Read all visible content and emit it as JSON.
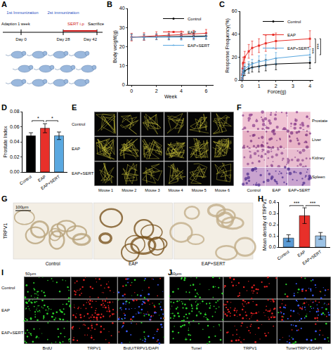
{
  "chart_data": [
    {
      "label": "B",
      "type": "line",
      "xlabel": "Week",
      "ylabel": "Body weight(g)",
      "x": [
        0,
        1,
        2,
        3,
        4,
        5,
        6
      ],
      "xlim": [
        -0.3,
        6.6
      ],
      "xticks": [
        0,
        2,
        4,
        6
      ],
      "ylim": [
        0,
        40
      ],
      "yticks": [
        0,
        10,
        20,
        30,
        40
      ],
      "grid": false,
      "legend": "top right",
      "series": [
        {
          "name": "Control",
          "color": "#000000",
          "marker": "circle",
          "values": [
            25,
            25,
            25.2,
            25.3,
            25.4,
            25.5,
            25.6
          ],
          "errors": [
            1.5,
            1.5,
            1.5,
            1.5,
            1.5,
            1.5,
            1.5
          ]
        },
        {
          "name": "EAP",
          "color": "#e8302a",
          "marker": "square",
          "values": [
            25,
            25.3,
            25.8,
            26,
            26.2,
            26.5,
            27
          ],
          "errors": [
            2,
            2,
            2,
            2,
            2,
            2,
            2
          ]
        },
        {
          "name": "EAP+SERT",
          "color": "#5aa8e0",
          "marker": "triangle-up",
          "values": [
            25,
            25,
            25.1,
            25,
            24.9,
            25,
            25.2
          ],
          "errors": [
            1.5,
            1.5,
            1.5,
            1.5,
            1.5,
            1.5,
            1.5
          ]
        }
      ]
    },
    {
      "label": "C",
      "type": "line",
      "xlabel": "Force(g)",
      "ylabel": "Response Frequency(%)",
      "x": [
        0.008,
        0.02,
        0.04,
        0.07,
        0.16,
        0.4,
        0.6,
        1,
        1.4,
        2,
        4
      ],
      "xlim": [
        -0.1,
        4.2
      ],
      "xticks": [
        0,
        1,
        2,
        3,
        4
      ],
      "ylim": [
        0,
        60
      ],
      "yticks": [
        0,
        20,
        40,
        60
      ],
      "grid": false,
      "legend": "top right",
      "series": [
        {
          "name": "Control",
          "color": "#000000",
          "marker": "circle",
          "values": [
            0,
            2,
            4,
            6,
            8,
            10,
            11,
            12,
            13,
            14,
            15
          ],
          "errors": [
            0,
            2,
            3,
            3,
            4,
            4,
            4,
            5,
            5,
            5,
            5
          ]
        },
        {
          "name": "EAP",
          "color": "#e8302a",
          "marker": "square",
          "values": [
            0,
            5,
            10,
            15,
            20,
            25,
            28,
            30,
            32,
            34,
            36
          ],
          "errors": [
            0,
            3,
            4,
            5,
            5,
            6,
            6,
            6,
            7,
            7,
            7
          ]
        },
        {
          "name": "EAP+SERT",
          "color": "#5aa8e0",
          "marker": "triangle-up",
          "values": [
            0,
            3,
            6,
            8,
            10,
            12,
            14,
            16,
            17,
            19,
            22
          ],
          "errors": [
            0,
            2,
            3,
            3,
            4,
            4,
            4,
            5,
            5,
            5,
            5
          ]
        }
      ],
      "significance": [
        {
          "pair": [
            "Control",
            "EAP"
          ],
          "label": "***"
        },
        {
          "pair": [
            "EAP+SERT",
            "EAP"
          ],
          "label": "***"
        }
      ]
    },
    {
      "label": "D",
      "type": "bar",
      "ylabel": "Prostate Index",
      "categories": [
        "Control",
        "EAP",
        "EAP+SERT"
      ],
      "values": [
        0.048,
        0.058,
        0.048
      ],
      "errors": [
        0.004,
        0.006,
        0.005
      ],
      "colors": [
        "#000000",
        "#e8302a",
        "#5aa8e0"
      ],
      "ylim": [
        0,
        0.08
      ],
      "yticks": [
        {
          "value": 0,
          "label": "0.00"
        },
        {
          "value": 0.02,
          "label": "0.02"
        },
        {
          "value": 0.04,
          "label": "0.04"
        },
        {
          "value": 0.06,
          "label": "0.06"
        },
        {
          "value": 0.08,
          "label": "0.08"
        }
      ],
      "grid": false,
      "significance": [
        {
          "pair": [
            "Control",
            "EAP"
          ],
          "label": "*"
        },
        {
          "pair": [
            "EAP",
            "EAP+SERT"
          ],
          "label": "*"
        }
      ]
    },
    {
      "label": "H",
      "type": "bar",
      "ylabel": "Mean density of TRPV1",
      "categories": [
        "Control",
        "EAP",
        "EAP+SERT"
      ],
      "values": [
        0.08,
        0.28,
        0.1
      ],
      "errors": [
        0.03,
        0.07,
        0.03
      ],
      "colors": [
        "#5b9bd5",
        "#e8302a",
        "#9dc3e6"
      ],
      "ylim": [
        0,
        0.4
      ],
      "yticks": [
        {
          "value": 0,
          "label": "0.0"
        },
        {
          "value": 0.1,
          "label": "0.1"
        },
        {
          "value": 0.2,
          "label": "0.2"
        },
        {
          "value": 0.3,
          "label": "0.3"
        },
        {
          "value": 0.4,
          "label": "0.4"
        }
      ],
      "grid": false,
      "significance": [
        {
          "pair": [
            "Control",
            "EAP"
          ],
          "label": "***"
        },
        {
          "pair": [
            "EAP",
            "EAP+SERT"
          ],
          "label": "***"
        }
      ]
    }
  ],
  "diagram": {
    "A": {
      "label": "A",
      "immunizations": [
        "1st Immunization",
        "2st immunization"
      ],
      "adaption": "Adaption 1 week",
      "treatment": "SERT i.p",
      "end": "Sacrifice",
      "days": [
        "Day 0",
        "Day 28",
        "Day 42"
      ]
    },
    "E": {
      "label": "E",
      "rows": [
        "Control",
        "EAP",
        "EAP+SERT"
      ],
      "columns": [
        "Mouse 1",
        "Mouse 2",
        "Mouse 3",
        "Mouse 4",
        "Mouse 5",
        "Mouse 6"
      ]
    },
    "F": {
      "label": "F",
      "rows": [
        "Prostate",
        "Liver",
        "Kidney",
        "Spleen"
      ],
      "columns": [
        "Control",
        "EAP",
        "EAP+SERT"
      ]
    },
    "G": {
      "label": "G",
      "stain": "TRPV1",
      "scale_bar": "100μm",
      "columns": [
        "Control",
        "EAP",
        "EAP+SERT"
      ]
    },
    "I": {
      "label": "I",
      "rows": [
        "Control",
        "EAP",
        "EAP+SERT"
      ],
      "columns": [
        "BrdU",
        "TRPV1",
        "BrdU/TRPV1/DAPI"
      ],
      "scale_bar": "50μm"
    },
    "J": {
      "label": "J",
      "columns": [
        "Tunel",
        "TRPV1",
        "Tunel/TRPV1/DAPI"
      ],
      "scale_bar": "50μm"
    }
  }
}
